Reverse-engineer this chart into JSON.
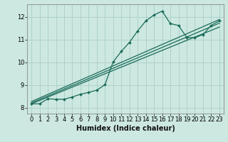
{
  "xlabel": "Humidex (Indice chaleur)",
  "ylabel": "",
  "bg_color": "#cce8e0",
  "grid_color": "#aacfc8",
  "line_color": "#1a6b5a",
  "xlim": [
    -0.5,
    23.5
  ],
  "ylim": [
    7.75,
    12.55
  ],
  "xticks": [
    0,
    1,
    2,
    3,
    4,
    5,
    6,
    7,
    8,
    9,
    10,
    11,
    12,
    13,
    14,
    15,
    16,
    17,
    18,
    19,
    20,
    21,
    22,
    23
  ],
  "yticks": [
    8,
    9,
    10,
    11,
    12
  ],
  "main_series_x": [
    0,
    1,
    2,
    3,
    4,
    5,
    6,
    7,
    8,
    9,
    10,
    11,
    12,
    13,
    14,
    15,
    16,
    17,
    18,
    19,
    20,
    21,
    22,
    23
  ],
  "main_series_y": [
    8.18,
    8.18,
    8.4,
    8.38,
    8.38,
    8.48,
    8.6,
    8.68,
    8.78,
    9.02,
    10.02,
    10.48,
    10.88,
    11.38,
    11.82,
    12.08,
    12.25,
    11.7,
    11.62,
    11.1,
    11.08,
    11.22,
    11.62,
    11.82
  ],
  "trend1_x": [
    0,
    23
  ],
  "trend1_y": [
    8.18,
    11.55
  ],
  "trend2_x": [
    0,
    23
  ],
  "trend2_y": [
    8.22,
    11.72
  ],
  "trend3_x": [
    0,
    23
  ],
  "trend3_y": [
    8.28,
    11.88
  ]
}
